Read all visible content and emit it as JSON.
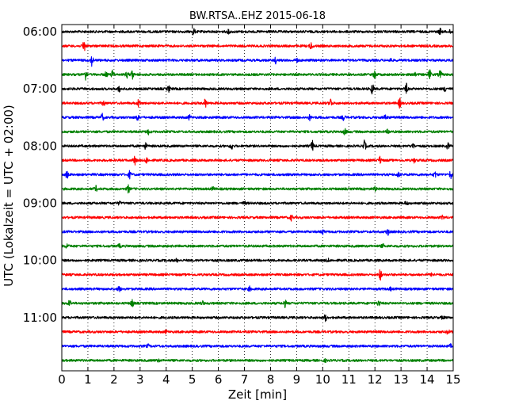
{
  "chart_data": {
    "type": "line",
    "title": "BW.RTSA..EHZ 2015-06-18",
    "xlabel": "Zeit  [min]",
    "ylabel": "UTC (Lokalzeit = UTC + 02:00)",
    "xlim": [
      0,
      15
    ],
    "x_ticks": [
      "0",
      "1",
      "2",
      "3",
      "4",
      "5",
      "6",
      "7",
      "8",
      "9",
      "10",
      "11",
      "12",
      "13",
      "14",
      "15"
    ],
    "y_ticks": [
      {
        "label": "06:00",
        "row": 0
      },
      {
        "label": "07:00",
        "row": 4
      },
      {
        "label": "08:00",
        "row": 8
      },
      {
        "label": "09:00",
        "row": 12
      },
      {
        "label": "10:00",
        "row": 16
      },
      {
        "label": "11:00",
        "row": 20
      }
    ],
    "grid": {
      "x": "dotted"
    },
    "trace_colors": [
      "#000000",
      "#ff0000",
      "#0000ff",
      "#008000"
    ],
    "traces": [
      {
        "start": "06:00",
        "events": [
          [
            5.05,
            1.0
          ],
          [
            6.4,
            0.5
          ],
          [
            14.5,
            0.9
          ],
          [
            14.9,
            0.6
          ]
        ]
      },
      {
        "start": "06:15",
        "events": [
          [
            0.85,
            1.8
          ],
          [
            9.55,
            1.0
          ]
        ]
      },
      {
        "start": "06:30",
        "events": [
          [
            1.15,
            1.5
          ],
          [
            8.2,
            0.8
          ],
          [
            9.0,
            0.6
          ],
          [
            12.6,
            0.5
          ]
        ]
      },
      {
        "start": "06:45",
        "events": [
          [
            0.9,
            1.6
          ],
          [
            1.7,
            0.8
          ],
          [
            1.95,
            1.2
          ],
          [
            2.5,
            0.9
          ],
          [
            2.7,
            1.3
          ],
          [
            12.0,
            1.4
          ],
          [
            13.5,
            0.9
          ],
          [
            14.1,
            1.4
          ],
          [
            14.5,
            1.3
          ]
        ]
      },
      {
        "start": "07:00",
        "events": [
          [
            2.2,
            0.8
          ],
          [
            4.1,
            0.8
          ],
          [
            11.9,
            1.6
          ],
          [
            13.2,
            1.5
          ],
          [
            14.7,
            0.8
          ]
        ]
      },
      {
        "start": "07:15",
        "events": [
          [
            1.6,
            0.7
          ],
          [
            2.95,
            1.3
          ],
          [
            5.5,
            1.2
          ],
          [
            10.3,
            1.3
          ],
          [
            12.95,
            1.4
          ]
        ]
      },
      {
        "start": "07:30",
        "events": [
          [
            1.55,
            1.0
          ],
          [
            2.9,
            0.8
          ],
          [
            4.9,
            0.7
          ],
          [
            9.5,
            0.7
          ],
          [
            10.8,
            0.8
          ],
          [
            12.4,
            0.7
          ]
        ]
      },
      {
        "start": "07:45",
        "events": [
          [
            3.3,
            0.8
          ],
          [
            10.85,
            0.9
          ],
          [
            12.5,
            0.6
          ]
        ]
      },
      {
        "start": "08:00",
        "events": [
          [
            3.2,
            0.9
          ],
          [
            6.5,
            1.0
          ],
          [
            9.6,
            1.5
          ],
          [
            11.6,
            1.5
          ],
          [
            13.45,
            0.8
          ],
          [
            14.8,
            0.9
          ]
        ]
      },
      {
        "start": "08:15",
        "events": [
          [
            2.8,
            1.3
          ],
          [
            3.25,
            0.8
          ],
          [
            12.2,
            1.0
          ],
          [
            13.5,
            0.6
          ]
        ]
      },
      {
        "start": "08:30",
        "events": [
          [
            0.2,
            1.0
          ],
          [
            2.6,
            1.0
          ],
          [
            12.9,
            0.7
          ],
          [
            14.3,
            0.8
          ],
          [
            14.9,
            1.1
          ]
        ]
      },
      {
        "start": "08:45",
        "events": [
          [
            1.3,
            0.8
          ],
          [
            2.55,
            1.1
          ],
          [
            5.8,
            0.5
          ],
          [
            12.0,
            0.6
          ]
        ]
      },
      {
        "start": "09:00",
        "events": [
          [
            2.2,
            0.4
          ],
          [
            7.0,
            0.4
          ],
          [
            13.2,
            0.5
          ]
        ]
      },
      {
        "start": "09:15",
        "events": [
          [
            8.8,
            0.8
          ],
          [
            14.6,
            0.5
          ]
        ]
      },
      {
        "start": "09:30",
        "events": [
          [
            10.0,
            0.6
          ],
          [
            12.5,
            0.9
          ]
        ]
      },
      {
        "start": "09:45",
        "events": [
          [
            0.2,
            0.7
          ],
          [
            2.2,
            0.5
          ],
          [
            12.3,
            0.5
          ]
        ]
      },
      {
        "start": "10:00",
        "events": [
          [
            4.4,
            0.4
          ],
          [
            10.2,
            0.4
          ]
        ]
      },
      {
        "start": "10:15",
        "events": [
          [
            12.2,
            1.6
          ],
          [
            14.2,
            0.5
          ]
        ]
      },
      {
        "start": "10:30",
        "events": [
          [
            2.2,
            0.8
          ],
          [
            7.2,
            0.6
          ],
          [
            12.6,
            0.4
          ]
        ]
      },
      {
        "start": "10:45",
        "events": [
          [
            0.3,
            0.9
          ],
          [
            2.7,
            1.2
          ],
          [
            5.4,
            0.5
          ],
          [
            8.55,
            1.0
          ],
          [
            12.15,
            0.9
          ]
        ]
      },
      {
        "start": "11:00",
        "events": [
          [
            10.1,
            0.9
          ],
          [
            14.6,
            0.4
          ]
        ]
      },
      {
        "start": "11:15",
        "events": [
          [
            4.0,
            0.4
          ],
          [
            14.8,
            0.7
          ]
        ]
      },
      {
        "start": "11:30",
        "events": [
          [
            3.3,
            0.4
          ],
          [
            14.9,
            0.4
          ]
        ]
      },
      {
        "start": "11:45",
        "events": [
          [
            3.7,
            0.3
          ],
          [
            10.1,
            0.3
          ]
        ]
      }
    ]
  }
}
